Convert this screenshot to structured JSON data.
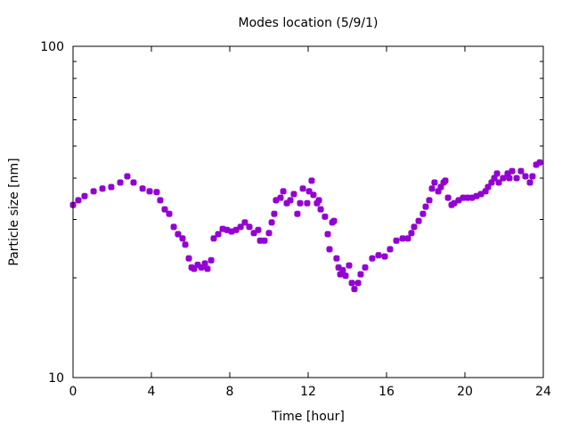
{
  "chart_data": {
    "type": "scatter",
    "title": "Modes location (5/9/1)",
    "xlabel": "Time [hour]",
    "ylabel": "Particle size [nm]",
    "xlim": [
      0,
      24
    ],
    "ylim": [
      10,
      100
    ],
    "yscale": "log",
    "xticks": [
      "0",
      "4",
      "8",
      "12",
      "16",
      "20",
      "24"
    ],
    "yticks": [
      "10",
      "100"
    ],
    "grid": false,
    "legend": "none",
    "color": "#9400d3",
    "points": [
      [
        0.0,
        33.2
      ],
      [
        0.27,
        34.3
      ],
      [
        0.59,
        35.3
      ],
      [
        1.05,
        36.5
      ],
      [
        1.5,
        37.2
      ],
      [
        1.95,
        37.6
      ],
      [
        2.41,
        38.8
      ],
      [
        2.77,
        40.5
      ],
      [
        3.09,
        38.8
      ],
      [
        3.55,
        37.2
      ],
      [
        3.91,
        36.5
      ],
      [
        4.27,
        36.3
      ],
      [
        4.45,
        34.3
      ],
      [
        4.68,
        32.2
      ],
      [
        4.91,
        31.2
      ],
      [
        5.14,
        28.5
      ],
      [
        5.36,
        27.1
      ],
      [
        5.59,
        26.3
      ],
      [
        5.73,
        25.2
      ],
      [
        5.91,
        22.9
      ],
      [
        6.05,
        21.5
      ],
      [
        6.18,
        21.3
      ],
      [
        6.36,
        21.9
      ],
      [
        6.55,
        21.5
      ],
      [
        6.73,
        22.1
      ],
      [
        6.86,
        21.3
      ],
      [
        7.05,
        22.6
      ],
      [
        7.18,
        26.3
      ],
      [
        7.41,
        27.1
      ],
      [
        7.64,
        28.1
      ],
      [
        7.86,
        27.9
      ],
      [
        8.09,
        27.6
      ],
      [
        8.32,
        27.9
      ],
      [
        8.55,
        28.5
      ],
      [
        8.77,
        29.4
      ],
      [
        9.0,
        28.5
      ],
      [
        9.23,
        27.3
      ],
      [
        9.45,
        27.9
      ],
      [
        9.55,
        25.9
      ],
      [
        9.77,
        25.9
      ],
      [
        10.0,
        27.3
      ],
      [
        10.14,
        29.4
      ],
      [
        10.27,
        31.2
      ],
      [
        10.36,
        34.3
      ],
      [
        10.59,
        34.9
      ],
      [
        10.73,
        36.5
      ],
      [
        10.91,
        33.6
      ],
      [
        11.09,
        34.3
      ],
      [
        11.27,
        35.8
      ],
      [
        11.45,
        31.2
      ],
      [
        11.59,
        33.6
      ],
      [
        11.73,
        37.2
      ],
      [
        11.95,
        33.6
      ],
      [
        12.05,
        36.5
      ],
      [
        12.18,
        39.3
      ],
      [
        12.27,
        35.6
      ],
      [
        12.45,
        33.6
      ],
      [
        12.55,
        34.3
      ],
      [
        12.64,
        32.2
      ],
      [
        12.86,
        30.6
      ],
      [
        13.0,
        27.1
      ],
      [
        13.09,
        24.4
      ],
      [
        13.23,
        29.4
      ],
      [
        13.32,
        29.7
      ],
      [
        13.45,
        22.9
      ],
      [
        13.55,
        21.5
      ],
      [
        13.64,
        20.5
      ],
      [
        13.77,
        21.1
      ],
      [
        13.91,
        20.3
      ],
      [
        14.09,
        21.8
      ],
      [
        14.23,
        19.3
      ],
      [
        14.36,
        18.5
      ],
      [
        14.55,
        19.3
      ],
      [
        14.68,
        20.5
      ],
      [
        14.91,
        21.5
      ],
      [
        15.27,
        22.9
      ],
      [
        15.59,
        23.4
      ],
      [
        15.91,
        23.2
      ],
      [
        16.18,
        24.4
      ],
      [
        16.5,
        25.9
      ],
      [
        16.82,
        26.3
      ],
      [
        17.09,
        26.3
      ],
      [
        17.27,
        27.3
      ],
      [
        17.41,
        28.5
      ],
      [
        17.64,
        29.7
      ],
      [
        17.86,
        31.2
      ],
      [
        18.0,
        32.8
      ],
      [
        18.18,
        34.3
      ],
      [
        18.32,
        37.2
      ],
      [
        18.45,
        38.8
      ],
      [
        18.64,
        36.5
      ],
      [
        18.77,
        37.6
      ],
      [
        18.91,
        38.8
      ],
      [
        19.0,
        39.3
      ],
      [
        19.14,
        34.9
      ],
      [
        19.32,
        33.2
      ],
      [
        19.45,
        33.6
      ],
      [
        19.68,
        34.3
      ],
      [
        19.91,
        34.9
      ],
      [
        20.14,
        34.9
      ],
      [
        20.36,
        34.9
      ],
      [
        20.59,
        35.3
      ],
      [
        20.82,
        35.8
      ],
      [
        21.05,
        36.5
      ],
      [
        21.18,
        37.6
      ],
      [
        21.36,
        38.8
      ],
      [
        21.5,
        40.0
      ],
      [
        21.64,
        41.3
      ],
      [
        21.73,
        38.8
      ],
      [
        21.95,
        40.0
      ],
      [
        22.18,
        41.3
      ],
      [
        22.27,
        40.0
      ],
      [
        22.41,
        42.0
      ],
      [
        22.64,
        40.0
      ],
      [
        22.86,
        42.0
      ],
      [
        23.09,
        40.5
      ],
      [
        23.32,
        38.8
      ],
      [
        23.45,
        40.5
      ],
      [
        23.64,
        43.9
      ],
      [
        23.82,
        44.6
      ]
    ]
  }
}
